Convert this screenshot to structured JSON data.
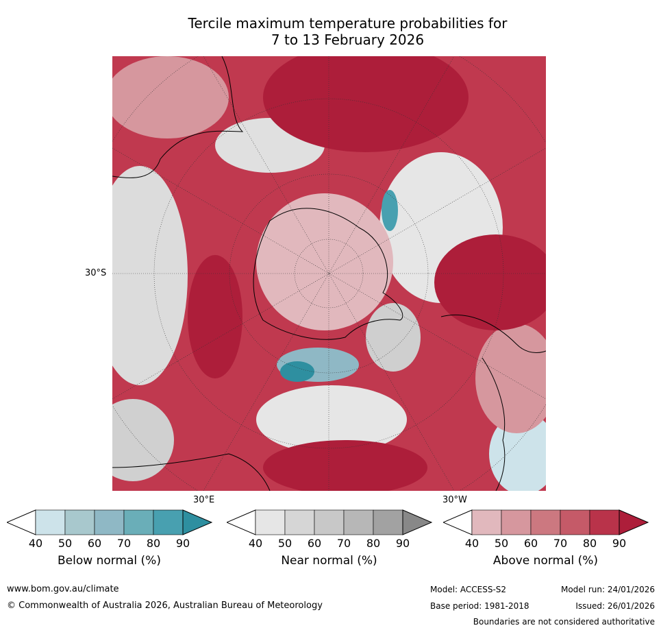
{
  "title_line1": "Tercile maximum temperature probabilities for",
  "title_line2": "7 to 13 February 2026",
  "map": {
    "lat_label": "30°S",
    "lon_label_east": "30°E",
    "lon_label_west": "30°W"
  },
  "legends": [
    {
      "title": "Below normal (%)",
      "ticks": [
        "40",
        "50",
        "60",
        "70",
        "80",
        "90"
      ],
      "colors": [
        "#cde3ea",
        "#a8c8cd",
        "#8fb8c5",
        "#6aaeb8",
        "#48a0b0"
      ],
      "arrow_color": "#2e8fa0"
    },
    {
      "title": "Near normal (%)",
      "ticks": [
        "40",
        "50",
        "60",
        "70",
        "80",
        "90"
      ],
      "colors": [
        "#e6e6e6",
        "#d6d6d6",
        "#c8c8c8",
        "#b7b7b7",
        "#a2a2a2"
      ],
      "arrow_color": "#888888"
    },
    {
      "title": "Above normal (%)",
      "ticks": [
        "40",
        "50",
        "60",
        "70",
        "80",
        "90"
      ],
      "colors": [
        "#e1b8bd",
        "#d6979e",
        "#cc7880",
        "#c55a68",
        "#b9334a"
      ],
      "arrow_color": "#ad1e3a"
    }
  ],
  "footer": {
    "website": "www.bom.gov.au/climate",
    "copyright": "© Commonwealth of Australia 2026, Australian Bureau of Meteorology",
    "model": "Model: ACCESS-S2",
    "base_period": "Base period: 1981-2018",
    "model_run": "Model run: 24/01/2026",
    "issued": "Issued: 26/01/2026",
    "disclaimer": "Boundaries are not considered authoritative"
  }
}
